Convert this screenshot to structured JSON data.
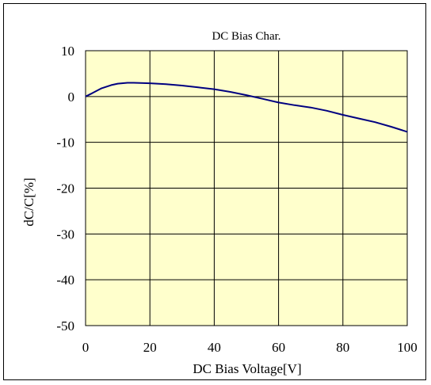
{
  "chart_data": {
    "type": "line",
    "title": "DC Bias Char.",
    "xlabel": "DC Bias Voltage[V]",
    "ylabel": "dC/C[%]",
    "xlim": [
      0,
      100
    ],
    "ylim": [
      -50,
      10
    ],
    "xticks": [
      0,
      20,
      40,
      60,
      80,
      100
    ],
    "yticks": [
      10,
      0,
      -10,
      -20,
      -30,
      -40,
      -50
    ],
    "xtick_labels": [
      "0",
      "20",
      "40",
      "60",
      "80",
      "100"
    ],
    "ytick_labels": [
      "10",
      "0",
      "-10",
      "-20",
      "-30",
      "-40",
      "-50"
    ],
    "grid": true,
    "series": [
      {
        "x": [
          0,
          2,
          5,
          8,
          10,
          13,
          15,
          20,
          25,
          30,
          35,
          40,
          45,
          50,
          55,
          60,
          65,
          70,
          75,
          80,
          85,
          90,
          95,
          100
        ],
        "y": [
          0,
          0.7,
          1.8,
          2.5,
          2.8,
          3.0,
          3.0,
          2.9,
          2.7,
          2.4,
          2.0,
          1.6,
          1.0,
          0.3,
          -0.5,
          -1.3,
          -1.9,
          -2.4,
          -3.1,
          -4.0,
          -4.8,
          -5.6,
          -6.6,
          -7.7
        ]
      }
    ],
    "colors": {
      "plot_background": "#FFFFCC",
      "line": "#000080",
      "grid": "#000000"
    }
  }
}
